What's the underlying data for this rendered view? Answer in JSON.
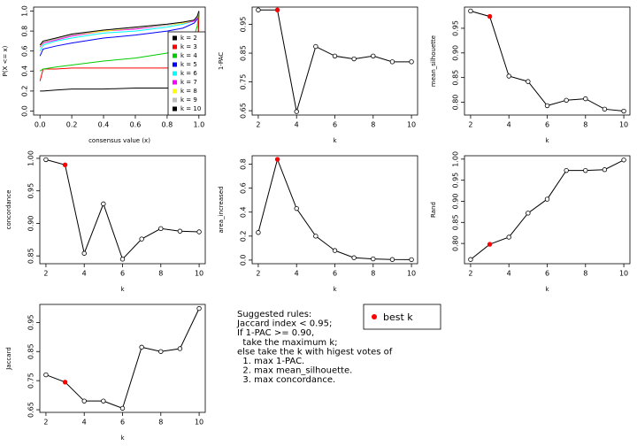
{
  "chart_data": [
    {
      "type": "line",
      "xlabel": "consensus value (x)",
      "ylabel": "P(X <= x)",
      "x": [
        0,
        0.02,
        0.1,
        0.2,
        0.4,
        0.6,
        0.8,
        0.9,
        0.97,
        0.99,
        1.0
      ],
      "xlim": [
        -0.04,
        1.04
      ],
      "ylim": [
        -0.04,
        1.04
      ],
      "xticks": [
        {
          "value": 0,
          "label": "0.0"
        },
        0.2,
        0.4,
        0.6,
        0.8,
        {
          "value": 1,
          "label": "1.0"
        }
      ],
      "yticks": [
        {
          "value": 0,
          "label": "0.0"
        },
        0.2,
        0.4,
        0.6,
        0.8,
        {
          "value": 1,
          "label": "1.0"
        }
      ],
      "legend": "bottom-right",
      "series": [
        {
          "name": "k = 2",
          "color": "#000000",
          "values": [
            0.2,
            0.2,
            0.21,
            0.22,
            0.22,
            0.23,
            0.23,
            0.24,
            0.25,
            0.28,
            1.0
          ]
        },
        {
          "name": "k = 3",
          "color": "#ff0000",
          "values": [
            0.3,
            0.42,
            0.42,
            0.43,
            0.43,
            0.43,
            0.43,
            0.43,
            0.43,
            0.45,
            1.0
          ]
        },
        {
          "name": "k = 4",
          "color": "#00cd00",
          "values": [
            0.4,
            0.42,
            0.44,
            0.46,
            0.5,
            0.53,
            0.58,
            0.65,
            0.75,
            0.85,
            1.0
          ]
        },
        {
          "name": "k = 5",
          "color": "#0000ff",
          "values": [
            0.55,
            0.62,
            0.65,
            0.68,
            0.73,
            0.76,
            0.8,
            0.83,
            0.88,
            0.92,
            1.0
          ]
        },
        {
          "name": "k = 6",
          "color": "#00ffff",
          "values": [
            0.6,
            0.66,
            0.7,
            0.73,
            0.78,
            0.8,
            0.84,
            0.87,
            0.9,
            0.93,
            1.0
          ]
        },
        {
          "name": "k = 7",
          "color": "#ff00ff",
          "values": [
            0.64,
            0.68,
            0.71,
            0.75,
            0.8,
            0.82,
            0.86,
            0.88,
            0.9,
            0.93,
            1.0
          ]
        },
        {
          "name": "k = 8",
          "color": "#ffff00",
          "values": [
            0.65,
            0.69,
            0.72,
            0.76,
            0.8,
            0.83,
            0.86,
            0.88,
            0.91,
            0.94,
            1.0
          ]
        },
        {
          "name": "k = 9",
          "color": "#bebebe",
          "values": [
            0.66,
            0.69,
            0.72,
            0.76,
            0.81,
            0.83,
            0.86,
            0.89,
            0.91,
            0.94,
            1.0
          ]
        },
        {
          "name": "k = 10",
          "color": "#000000",
          "values": [
            0.66,
            0.7,
            0.73,
            0.77,
            0.81,
            0.84,
            0.87,
            0.89,
            0.91,
            0.95,
            1.0
          ]
        }
      ]
    },
    {
      "type": "line",
      "markers": true,
      "xlabel": "k",
      "ylabel": "1-PAC",
      "x": [
        2,
        3,
        4,
        5,
        6,
        7,
        8,
        9,
        10
      ],
      "values": [
        1.0,
        1.0,
        0.647,
        0.873,
        0.84,
        0.83,
        0.84,
        0.82,
        0.82
      ],
      "xlim": [
        1.68,
        10.32
      ],
      "ylim": [
        0.635,
        1.01
      ],
      "xticks": [
        2,
        4,
        6,
        8,
        10
      ],
      "yticks": [
        0.65,
        0.75,
        0.85,
        0.95
      ]
    },
    {
      "type": "line",
      "markers": true,
      "xlabel": "k",
      "ylabel": "mean_silhouette",
      "x": [
        2,
        3,
        4,
        5,
        6,
        7,
        8,
        9,
        10
      ],
      "values": [
        0.985,
        0.974,
        0.853,
        0.842,
        0.793,
        0.804,
        0.807,
        0.786,
        0.782
      ],
      "xlim": [
        1.68,
        10.32
      ],
      "ylim": [
        0.774,
        0.993
      ],
      "xticks": [
        2,
        4,
        6,
        8,
        10
      ],
      "yticks": [
        {
          "value": 0.8,
          "label": "0.80"
        },
        0.85,
        {
          "value": 0.9,
          "label": "0.90"
        },
        0.95
      ]
    },
    {
      "type": "line",
      "markers": true,
      "xlabel": "k",
      "ylabel": "concordance",
      "x": [
        2,
        3,
        4,
        5,
        6,
        7,
        8,
        9,
        10
      ],
      "values": [
        0.998,
        0.99,
        0.854,
        0.93,
        0.845,
        0.876,
        0.892,
        0.888,
        0.887
      ],
      "xlim": [
        1.68,
        10.32
      ],
      "ylim": [
        0.838,
        1.004
      ],
      "xticks": [
        2,
        4,
        6,
        8,
        10
      ],
      "yticks": [
        0.85,
        {
          "value": 0.9,
          "label": "0.90"
        },
        0.95,
        {
          "value": 1,
          "label": "1.00"
        }
      ]
    },
    {
      "type": "line",
      "markers": true,
      "xlabel": "k",
      "ylabel": "area_increased",
      "x": [
        2,
        3,
        4,
        5,
        6,
        7,
        8,
        9,
        10
      ],
      "values": [
        0.23,
        0.84,
        0.43,
        0.2,
        0.08,
        0.02,
        0.01,
        0.005,
        0.004
      ],
      "xlim": [
        1.68,
        10.32
      ],
      "ylim": [
        -0.03,
        0.87
      ],
      "xticks": [
        2,
        4,
        6,
        8,
        10
      ],
      "yticks": [
        {
          "value": 0,
          "label": "0.0"
        },
        0.2,
        0.4,
        0.6,
        0.8
      ]
    },
    {
      "type": "line",
      "markers": true,
      "xlabel": "k",
      "ylabel": "Rand",
      "x": [
        2,
        3,
        4,
        5,
        6,
        7,
        8,
        9,
        10
      ],
      "values": [
        0.762,
        0.798,
        0.815,
        0.872,
        0.905,
        0.973,
        0.973,
        0.975,
        0.998
      ],
      "xlim": [
        1.68,
        10.32
      ],
      "ylim": [
        0.752,
        1.008
      ],
      "xticks": [
        2,
        4,
        6,
        8,
        10
      ],
      "yticks": [
        {
          "value": 0.8,
          "label": "0.80"
        },
        0.85,
        {
          "value": 0.9,
          "label": "0.90"
        },
        0.95,
        {
          "value": 1,
          "label": "1.00"
        }
      ]
    },
    {
      "type": "line",
      "markers": true,
      "xlabel": "k",
      "ylabel": "Jaccard",
      "x": [
        2,
        3,
        4,
        5,
        6,
        7,
        8,
        9,
        10
      ],
      "values": [
        0.77,
        0.745,
        0.68,
        0.68,
        0.655,
        0.865,
        0.85,
        0.86,
        0.998
      ],
      "xlim": [
        1.68,
        10.32
      ],
      "ylim": [
        0.641,
        1.012
      ],
      "xticks": [
        2,
        4,
        6,
        8,
        10
      ],
      "yticks": [
        0.65,
        0.75,
        0.85,
        0.95
      ]
    }
  ],
  "best_k": {
    "value": 3,
    "label": "best k",
    "color": "#ff0000"
  },
  "rules": [
    "Suggested rules:",
    "Jaccard index < 0.95;",
    "If 1-PAC >= 0.90,",
    "  take the maximum k;",
    "else take the k with higest votes of",
    "  1. max 1-PAC.",
    "  2. max mean_silhouette.",
    "  3. max concordance."
  ]
}
